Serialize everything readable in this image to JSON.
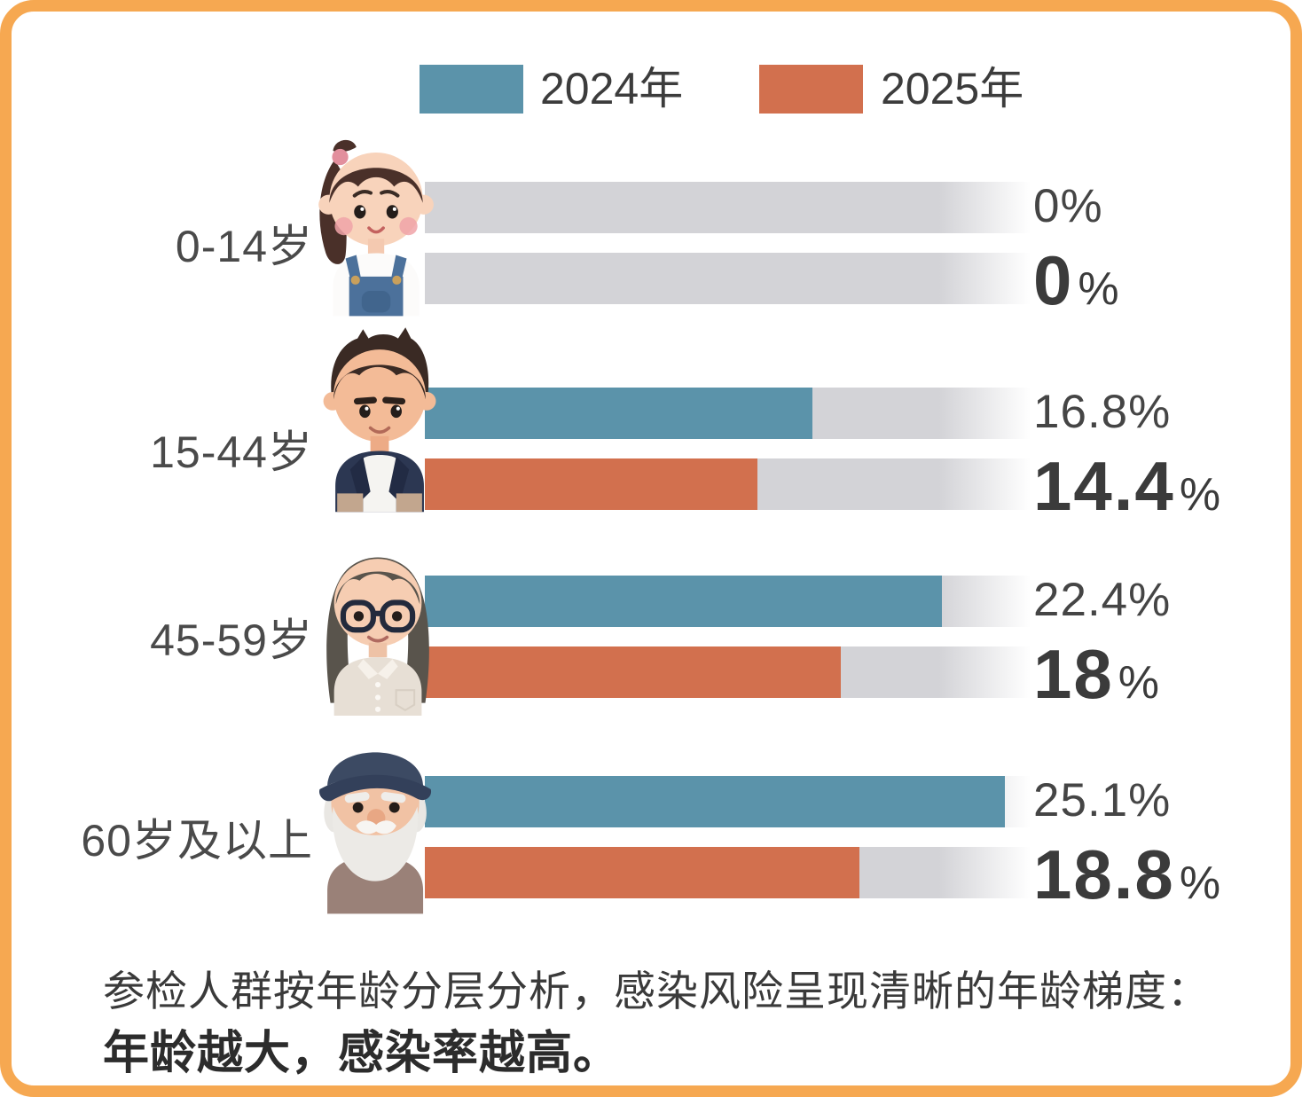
{
  "legend": {
    "items": [
      {
        "label": "2024年",
        "color": "#5b93aa"
      },
      {
        "label": "2025年",
        "color": "#d2704e"
      }
    ]
  },
  "chart_data": {
    "type": "bar",
    "orientation": "horizontal",
    "categories": [
      "0-14岁",
      "15-44岁",
      "45-59岁",
      "60岁及以上"
    ],
    "series": [
      {
        "name": "2024年",
        "color": "#5b93aa",
        "values": [
          0,
          16.8,
          22.4,
          25.1
        ]
      },
      {
        "name": "2025年",
        "color": "#d2704e",
        "values": [
          0,
          14.4,
          18,
          18.8
        ]
      }
    ],
    "unit": "%",
    "track_max_percent": 26.5,
    "track_color": "#d3d3d7",
    "legend_position": "top",
    "grid": false
  },
  "rows": [
    {
      "category": "0-14岁",
      "avatar": "girl-child",
      "label_2024": "0%",
      "value_2025_big": "0",
      "percent_sign": "%"
    },
    {
      "category": "15-44岁",
      "avatar": "young-man",
      "label_2024": "16.8%",
      "value_2025_big": "14.4",
      "percent_sign": "%"
    },
    {
      "category": "45-59岁",
      "avatar": "middle-aged-woman",
      "label_2024": "22.4%",
      "value_2025_big": "18",
      "percent_sign": "%"
    },
    {
      "category": "60岁及以上",
      "avatar": "elderly-man",
      "label_2024": "25.1%",
      "value_2025_big": "18.8",
      "percent_sign": "%"
    }
  ],
  "footer": {
    "line1": "参检人群按年龄分层分析，感染风险呈现清晰的年龄梯度：",
    "line2": "年龄越大，感染率越高。"
  },
  "frame": {
    "border_color": "#f6a851"
  }
}
